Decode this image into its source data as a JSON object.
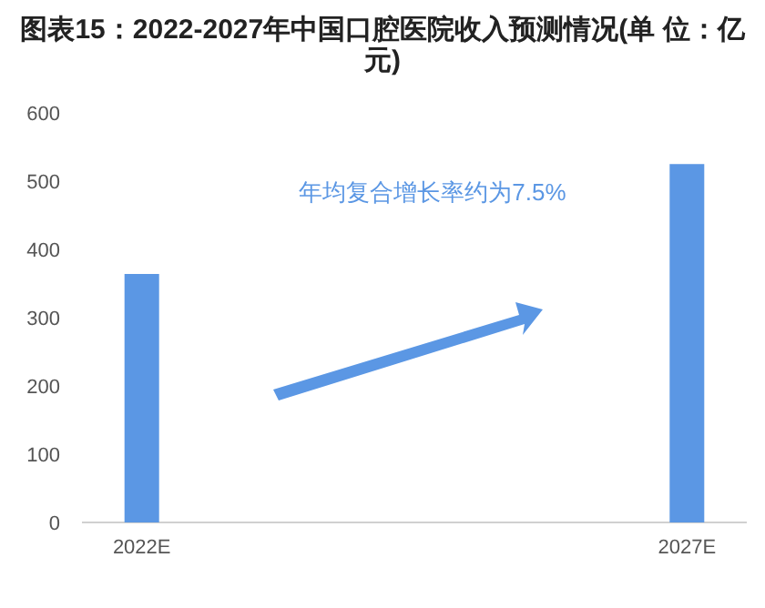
{
  "chart_data": {
    "type": "bar",
    "title": "图表15：2022-2027年中国口腔医院收入预测情况(单 位：亿元)",
    "categories": [
      "2022E",
      "2027E"
    ],
    "values": [
      364,
      525
    ],
    "color": "#5b97e4",
    "ylim": [
      0,
      600
    ],
    "yticks": [
      0,
      100,
      200,
      300,
      400,
      500,
      600
    ],
    "grid": false,
    "annotations": [
      "年均复合增长率约为7.5%"
    ]
  }
}
